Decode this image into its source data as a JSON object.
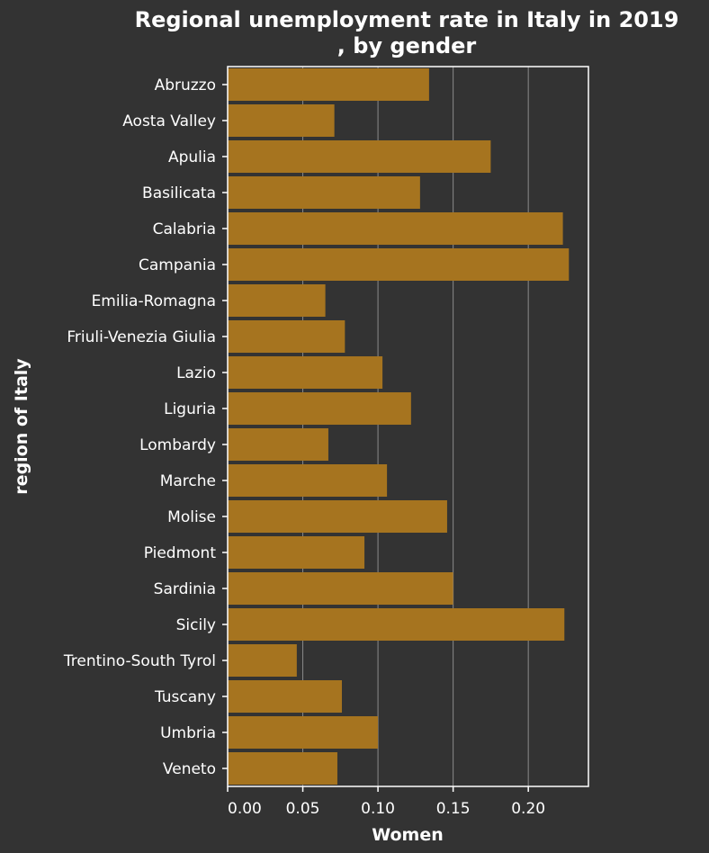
{
  "chart_data": {
    "type": "bar",
    "orientation": "horizontal",
    "title_lines": [
      "Regional unemployment rate in Italy in 2019",
      ", by gender"
    ],
    "xlabel": "Women",
    "ylabel": "region of Italy",
    "xlim": [
      0,
      0.24
    ],
    "xticks": [
      0,
      0.05,
      0.1,
      0.15,
      0.2
    ],
    "xtick_labels": [
      "0.00",
      "0.05",
      "0.10",
      "0.15",
      "0.20"
    ],
    "grid": true,
    "categories": [
      "Abruzzo",
      "Aosta Valley",
      "Apulia",
      "Basilicata",
      "Calabria",
      "Campania",
      "Emilia-Romagna",
      "Friuli-Venezia Giulia",
      "Lazio",
      "Liguria",
      "Lombardy",
      "Marche",
      "Molise",
      "Piedmont",
      "Sardinia",
      "Sicily",
      "Trentino-South Tyrol",
      "Tuscany",
      "Umbria",
      "Veneto"
    ],
    "values": [
      0.134,
      0.071,
      0.175,
      0.128,
      0.223,
      0.227,
      0.065,
      0.078,
      0.103,
      0.122,
      0.067,
      0.106,
      0.146,
      0.091,
      0.15,
      0.224,
      0.046,
      0.076,
      0.1,
      0.073
    ]
  },
  "colors": {
    "background": "#333333",
    "bar": "#a6741f",
    "text": "#ffffff",
    "grid": "#8a8a8a",
    "frame": "#ffffff"
  }
}
